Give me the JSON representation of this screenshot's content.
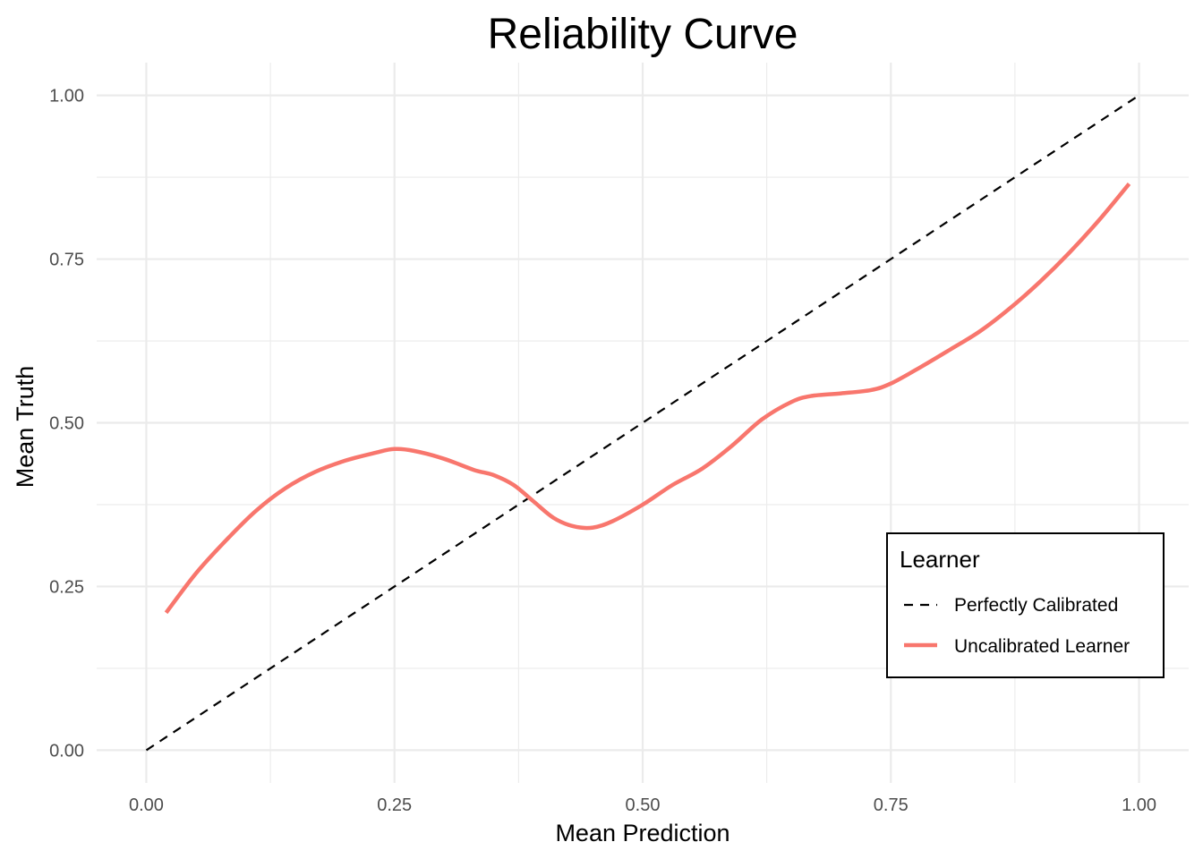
{
  "chart_data": {
    "type": "line",
    "title": "Reliability Curve",
    "xlabel": "Mean Prediction",
    "ylabel": "Mean Truth",
    "xlim": [
      -0.05,
      1.05
    ],
    "ylim": [
      -0.05,
      1.05
    ],
    "x_ticks": [
      "0.00",
      "0.25",
      "0.50",
      "0.75",
      "1.00"
    ],
    "y_ticks": [
      "0.00",
      "0.25",
      "0.50",
      "0.75",
      "1.00"
    ],
    "x_tick_values": [
      0,
      0.25,
      0.5,
      0.75,
      1.0
    ],
    "y_tick_values": [
      0,
      0.25,
      0.5,
      0.75,
      1.0
    ],
    "grid": true,
    "legend": {
      "title": "Learner",
      "position": "bottom-right"
    },
    "series": [
      {
        "name": "Perfectly Calibrated",
        "style": "dashed",
        "color": "#000000",
        "x": [
          0,
          1
        ],
        "y": [
          0,
          1
        ]
      },
      {
        "name": "Uncalibrated Learner",
        "style": "solid",
        "color": "#f8766d",
        "x": [
          0.02,
          0.05,
          0.08,
          0.11,
          0.14,
          0.17,
          0.2,
          0.23,
          0.25,
          0.27,
          0.3,
          0.33,
          0.35,
          0.37,
          0.39,
          0.41,
          0.43,
          0.45,
          0.47,
          0.5,
          0.53,
          0.56,
          0.59,
          0.62,
          0.65,
          0.67,
          0.7,
          0.73,
          0.75,
          0.78,
          0.81,
          0.84,
          0.87,
          0.9,
          0.93,
          0.96,
          0.99
        ],
        "y": [
          0.21,
          0.27,
          0.32,
          0.365,
          0.4,
          0.425,
          0.442,
          0.454,
          0.46,
          0.457,
          0.445,
          0.428,
          0.42,
          0.405,
          0.38,
          0.355,
          0.342,
          0.34,
          0.35,
          0.375,
          0.405,
          0.43,
          0.465,
          0.505,
          0.532,
          0.541,
          0.545,
          0.55,
          0.56,
          0.585,
          0.612,
          0.64,
          0.675,
          0.715,
          0.76,
          0.81,
          0.865
        ]
      }
    ]
  }
}
